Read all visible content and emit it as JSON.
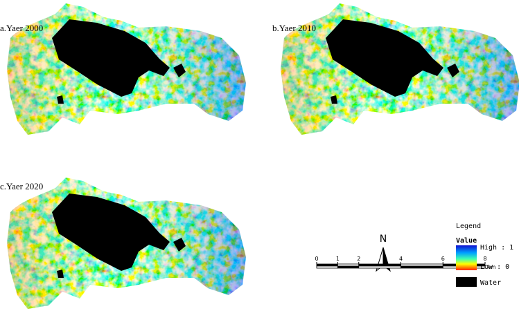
{
  "panels": [
    {
      "label": "a.Yaer 2000"
    },
    {
      "label": "b.Yaer 2010"
    },
    {
      "label": "c.Yaer 2020"
    }
  ],
  "north_arrow": {
    "label": "N"
  },
  "scale_bar": {
    "ticks": [
      0,
      1,
      2,
      4,
      6,
      8
    ],
    "unit": "km"
  },
  "legend": {
    "title": "Legend",
    "field": "Value",
    "high": "High : 1",
    "low": "Low : 0",
    "water": "Water"
  }
}
